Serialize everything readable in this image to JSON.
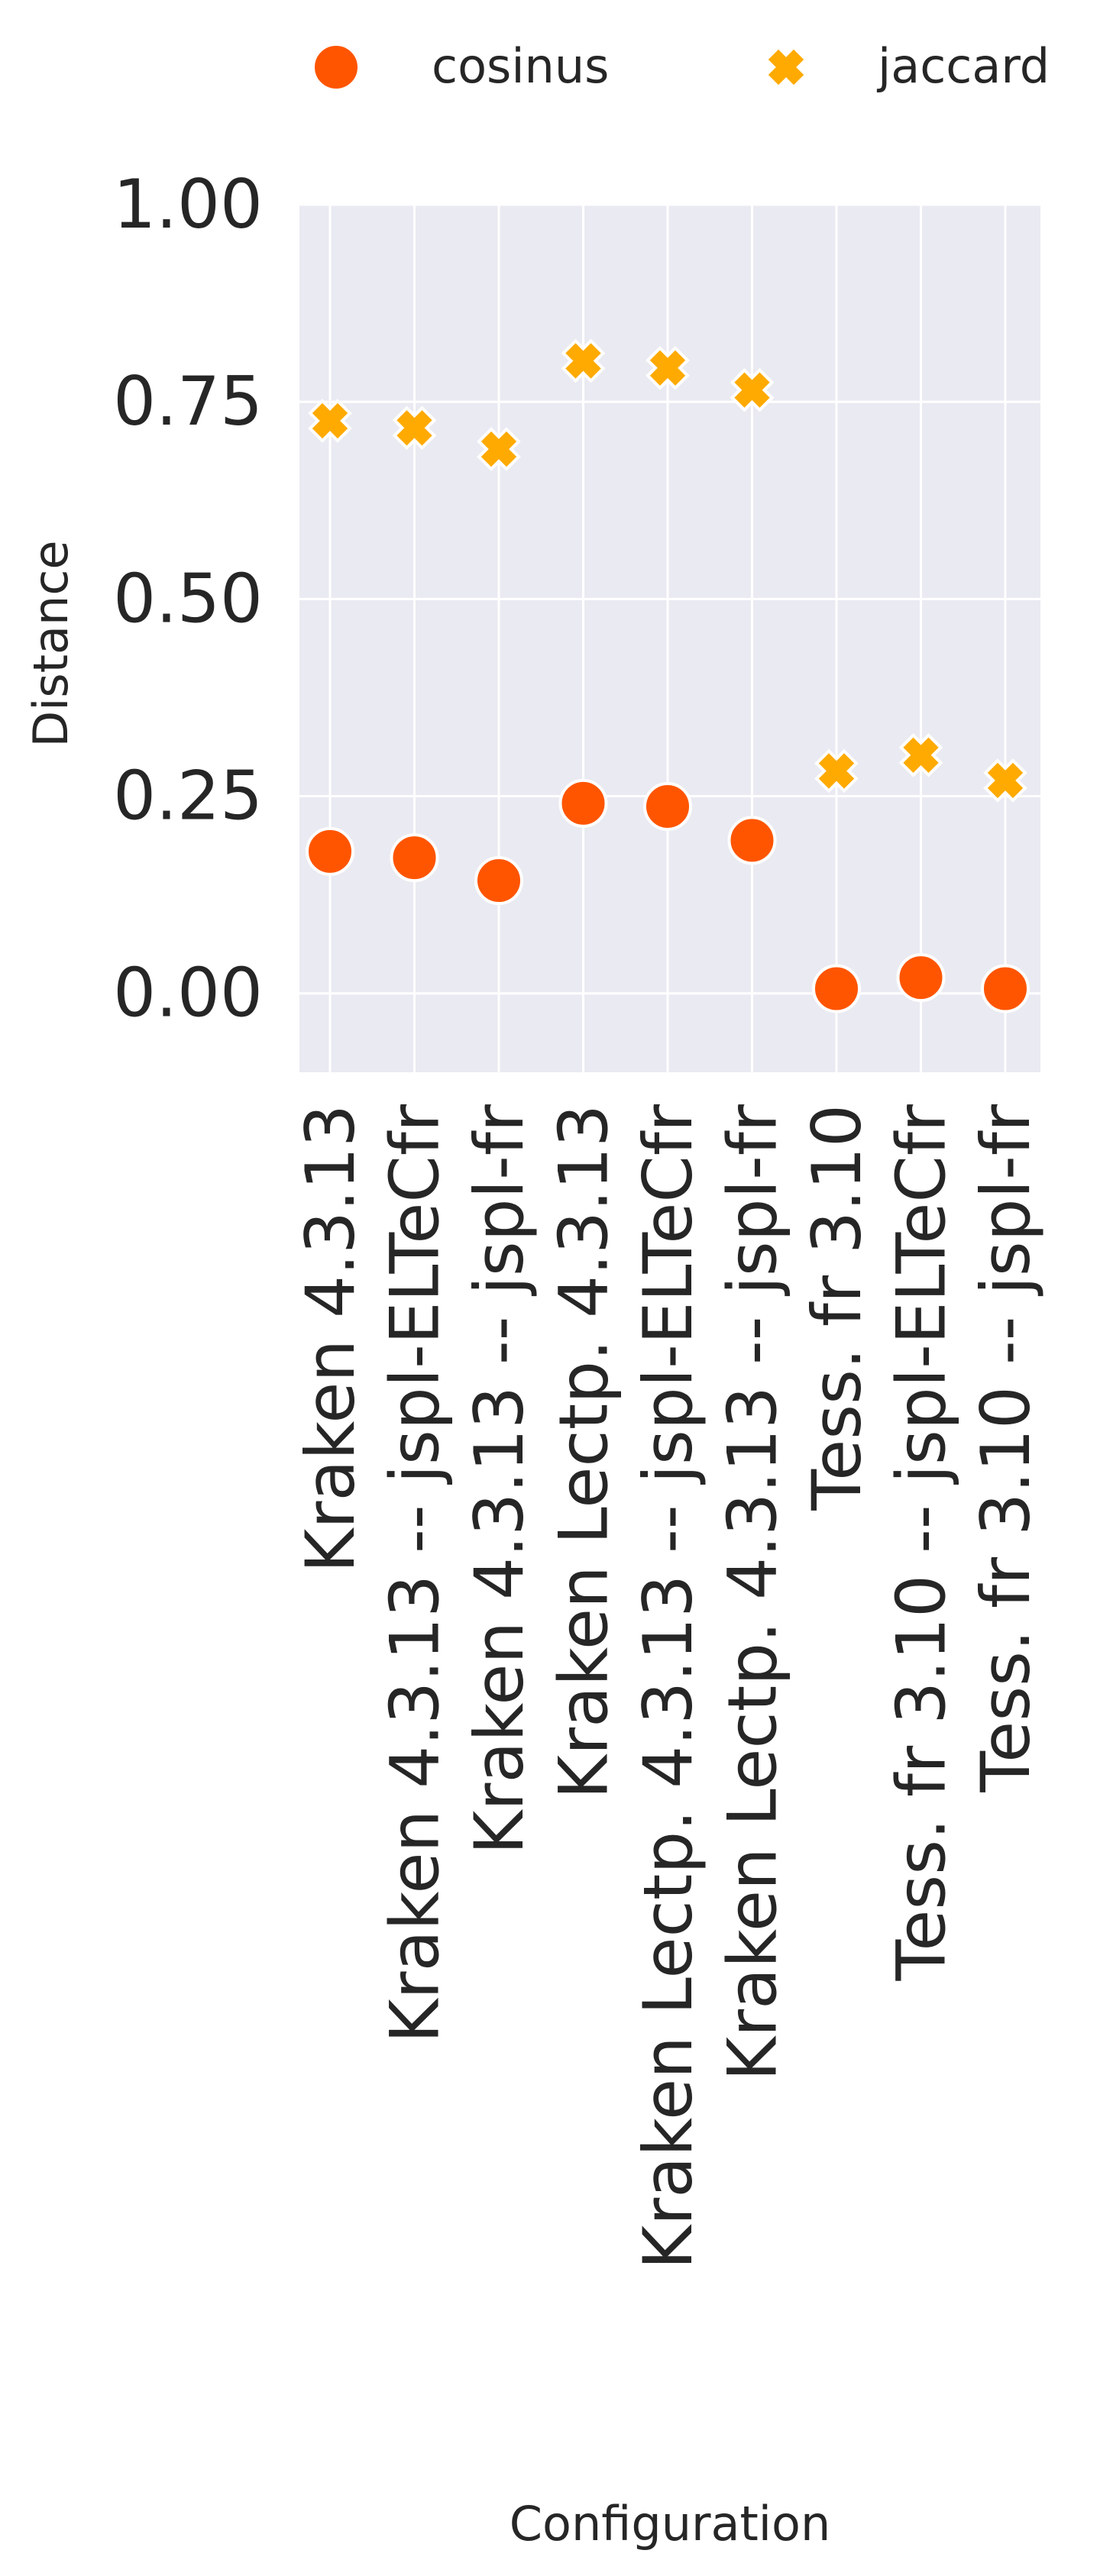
{
  "chart_data": {
    "type": "scatter",
    "xlabel": "Configuration",
    "ylabel": "Distance",
    "ylim": [
      -0.1,
      1.0
    ],
    "yticks": [
      "1.00",
      "0.75",
      "0.50",
      "0.25",
      "0.00"
    ],
    "ytick_values": [
      1.0,
      0.75,
      0.5,
      0.25,
      0.0
    ],
    "grid": true,
    "legend_position": "top",
    "categories": [
      "Kraken 4.3.13",
      "Kraken 4.3.13 -- jspl-ELTeCfr",
      "Kraken 4.3.13 -- jspl-fr",
      "Kraken Lectp. 4.3.13",
      "Kraken Lectp. 4.3.13 -- jspl-ELTeCfr",
      "Kraken Lectp. 4.3.13 -- jspl-fr",
      "Tess. fr 3.10",
      "Tess. fr 3.10 -- jspl-ELTeCfr",
      "Tess. fr 3.10 -- jspl-fr"
    ],
    "series": [
      {
        "name": "cosinus",
        "marker": "circle",
        "color": "#ff5500",
        "values": [
          0.18,
          0.172,
          0.143,
          0.241,
          0.237,
          0.194,
          0.006,
          0.02,
          0.006
        ]
      },
      {
        "name": "jaccard",
        "marker": "x",
        "color": "#ffaa00",
        "values": [
          0.726,
          0.717,
          0.69,
          0.802,
          0.793,
          0.765,
          0.282,
          0.302,
          0.27
        ]
      }
    ]
  }
}
